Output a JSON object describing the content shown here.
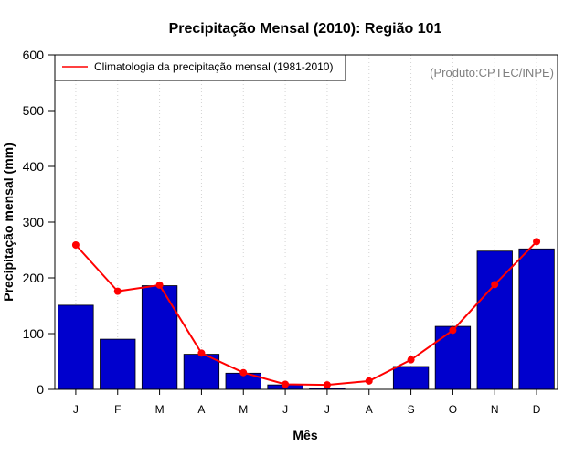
{
  "chart_data": {
    "type": "bar",
    "title": "Precipitação Mensal (2010): Região 101",
    "xlabel": "Mês",
    "ylabel": "Precipitação mensal (mm)",
    "ylim": [
      0,
      600
    ],
    "yticks": [
      0,
      100,
      200,
      300,
      400,
      500,
      600
    ],
    "categories": [
      "J",
      "F",
      "M",
      "A",
      "M",
      "J",
      "J",
      "A",
      "S",
      "O",
      "N",
      "D"
    ],
    "series": [
      {
        "name": "Precipitação mensal 2010",
        "type": "bar",
        "color": "#0000cd",
        "values": [
          151,
          90,
          186,
          63,
          29,
          8,
          2,
          0,
          41,
          113,
          248,
          252
        ]
      },
      {
        "name": "Climatologia da precipitação mensal (1981-2010)",
        "type": "line",
        "color": "#ff0000",
        "values": [
          259,
          176,
          187,
          65,
          30,
          9,
          8,
          15,
          53,
          106,
          188,
          265
        ]
      }
    ],
    "legend": {
      "position": "top-left",
      "label": "Climatologia da precipitação mensal (1981-2010)"
    },
    "annotation": "(Produto:CPTEC/INPE)",
    "grid": "vertical dotted"
  }
}
